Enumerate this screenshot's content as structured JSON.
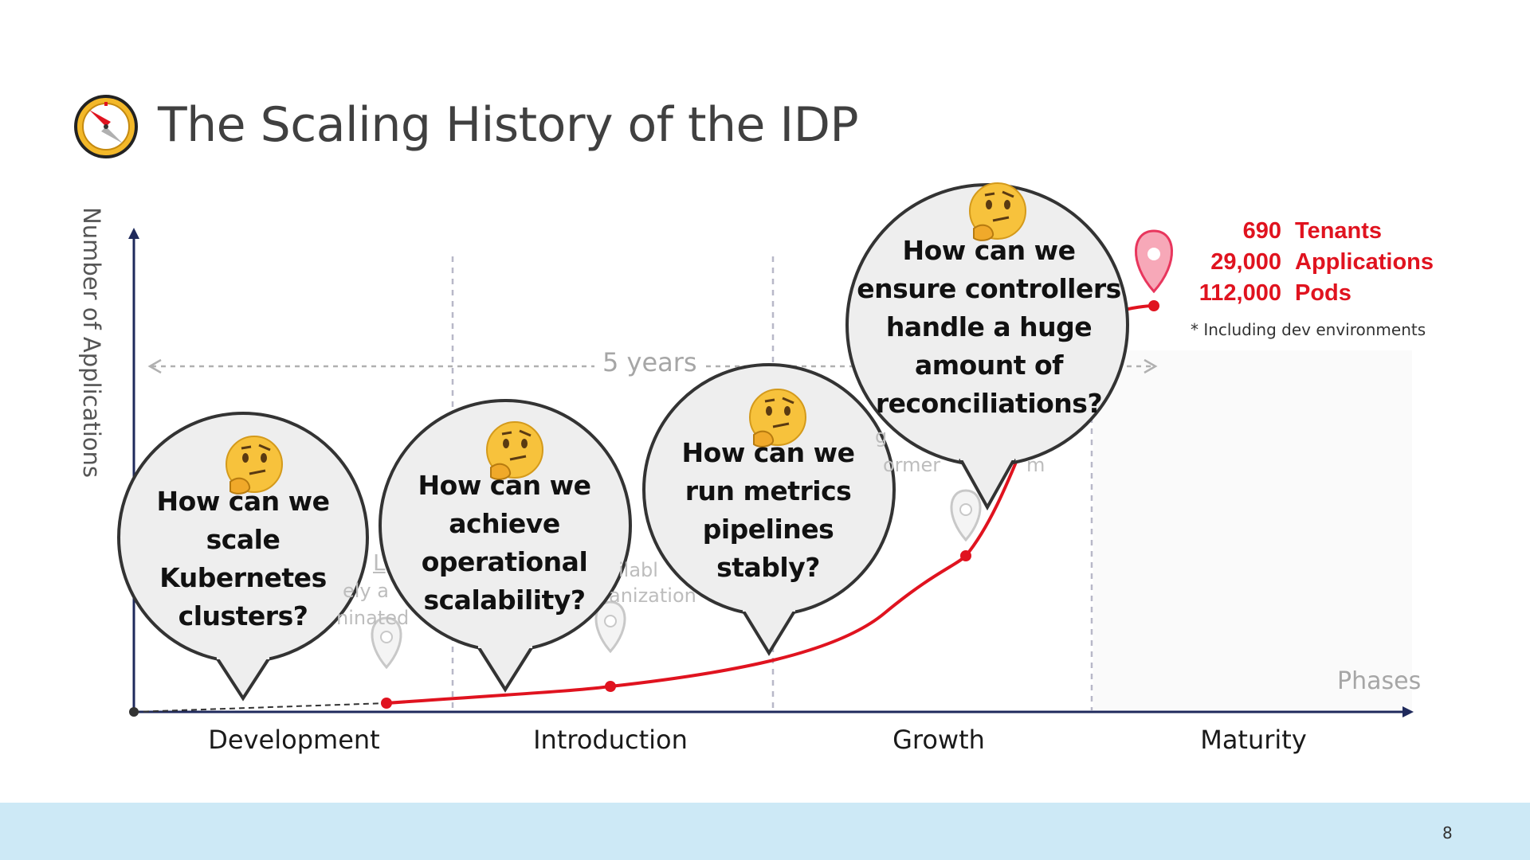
{
  "slide": {
    "title": "The Scaling History of the IDP",
    "icon": "compass-icon",
    "page_number": "8"
  },
  "chart": {
    "y_axis_label": "Number of Applications",
    "x_axis_label": "Phases",
    "phases": [
      "Development",
      "Introduction",
      "Growth",
      "Maturity"
    ],
    "duration_label": "5 years",
    "curve_color": "#e0131f",
    "axis_color": "#1f2a5c"
  },
  "stats": {
    "items": [
      {
        "number": "690",
        "unit": "Tenants"
      },
      {
        "number": "29,000",
        "unit": "Applications"
      },
      {
        "number": "112,000",
        "unit": "Pods"
      }
    ],
    "footnote": "* Including dev environments",
    "color": "#e0131f"
  },
  "questions": [
    {
      "icon": "thinking-face-icon",
      "lines": [
        "How can we",
        "scale",
        "Kubernetes",
        "clusters?"
      ]
    },
    {
      "icon": "thinking-face-icon",
      "lines": [
        "How can we",
        "achieve",
        "operational",
        "scalability?"
      ]
    },
    {
      "icon": "thinking-face-icon",
      "lines": [
        "How can we",
        "run metrics",
        "pipelines",
        "stably?"
      ]
    },
    {
      "icon": "thinking-face-icon",
      "lines": [
        "How can we",
        "ensure controllers",
        "handle a huge",
        "amount of",
        "reconciliations?"
      ]
    }
  ],
  "obscured_fragments": [
    "L",
    "ely a",
    "ninated",
    "ilabl",
    "anization",
    "g",
    "ormer",
    "m"
  ],
  "footer_color": "#cde9f6"
}
